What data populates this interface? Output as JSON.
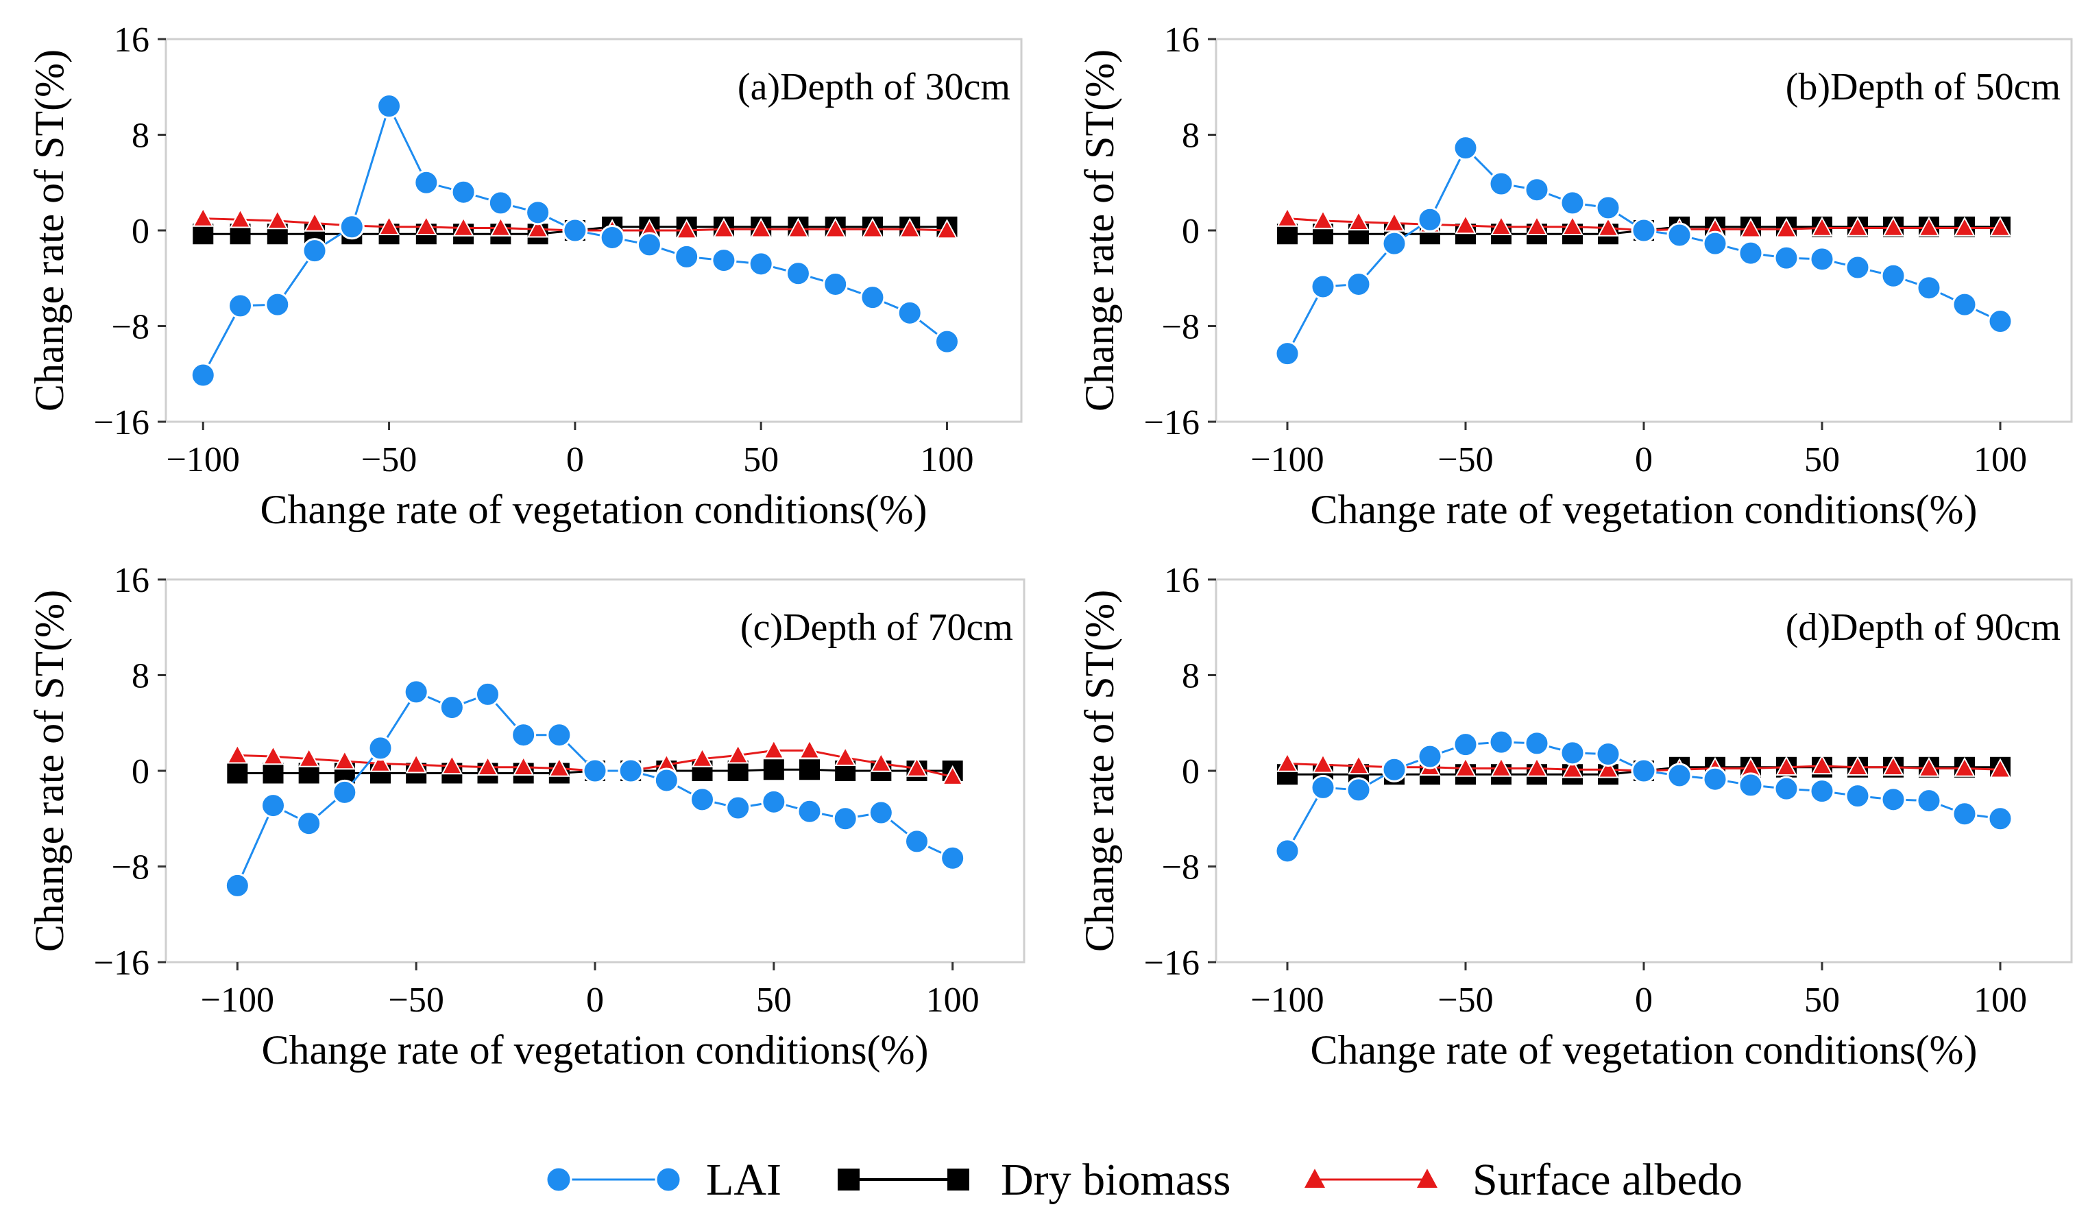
{
  "chart_data": {
    "type": "line",
    "legend": {
      "placement": "bottom",
      "entries": [
        {
          "name": "LAI",
          "marker": "circle",
          "color": "#1e8cf0"
        },
        {
          "name": "Dry biomass",
          "marker": "square",
          "color": "#000000"
        },
        {
          "name": "Surface albedo",
          "marker": "triangle",
          "color": "#e51a1a"
        }
      ]
    },
    "colors": {
      "lai": "#1e8cf0",
      "lai_stroke": "#ffffff",
      "dry": "#000000",
      "albedo": "#e51a1a",
      "frame": "#cfcfcf"
    },
    "panels": [
      {
        "title": "(a)Depth of 30cm",
        "xlabel": "Change rate of vegetation conditions(%)",
        "ylabel": "Change rate of ST(%)",
        "xlim": [
          -110,
          120
        ],
        "ylim": [
          -16,
          16
        ],
        "xticks": [
          -100,
          -50,
          0,
          50,
          100
        ],
        "xtick_labels": [
          "−100",
          "−50",
          "0",
          "50",
          "100"
        ],
        "yticks": [
          16,
          8,
          0,
          -8,
          -16
        ],
        "ytick_labels": [
          "16",
          "8",
          "0",
          "−8",
          "−16"
        ],
        "x": [
          -100,
          -90,
          -80,
          -70,
          -60,
          -50,
          -40,
          -30,
          -20,
          -10,
          0,
          10,
          20,
          30,
          40,
          50,
          60,
          70,
          80,
          90,
          100
        ],
        "series": [
          {
            "name": "LAI",
            "values": [
              -12.1,
              -6.3,
              -6.2,
              -1.7,
              0.3,
              10.4,
              4.0,
              3.2,
              2.3,
              1.5,
              0.0,
              -0.6,
              -1.2,
              -2.2,
              -2.5,
              -2.8,
              -3.6,
              -4.5,
              -5.6,
              -6.9,
              -9.3
            ]
          },
          {
            "name": "Dry biomass",
            "values": [
              -0.3,
              -0.3,
              -0.3,
              -0.3,
              -0.3,
              -0.3,
              -0.3,
              -0.3,
              -0.3,
              -0.3,
              0.0,
              0.3,
              0.3,
              0.3,
              0.3,
              0.3,
              0.3,
              0.3,
              0.3,
              0.3,
              0.3
            ]
          },
          {
            "name": "Surface albedo",
            "values": [
              1.0,
              0.9,
              0.8,
              0.6,
              0.4,
              0.3,
              0.3,
              0.2,
              0.2,
              0.1,
              0.0,
              0.0,
              0.0,
              0.0,
              0.1,
              0.1,
              0.1,
              0.1,
              0.1,
              0.1,
              0.0
            ]
          }
        ]
      },
      {
        "title": "(b)Depth of 50cm",
        "xlabel": "Change rate of vegetation conditions(%)",
        "ylabel": "Change rate of ST(%)",
        "xlim": [
          -120,
          120
        ],
        "ylim": [
          -16,
          16
        ],
        "xticks": [
          -100,
          -50,
          0,
          50,
          100
        ],
        "xtick_labels": [
          "−100",
          "−50",
          "0",
          "50",
          "100"
        ],
        "yticks": [
          16,
          8,
          0,
          -8,
          -16
        ],
        "ytick_labels": [
          "16",
          "8",
          "0",
          "−8",
          "−16"
        ],
        "x": [
          -100,
          -90,
          -80,
          -70,
          -60,
          -50,
          -40,
          -30,
          -20,
          -10,
          0,
          10,
          20,
          30,
          40,
          50,
          60,
          70,
          80,
          90,
          100
        ],
        "series": [
          {
            "name": "LAI",
            "values": [
              -10.3,
              -4.7,
              -4.5,
              -1.1,
              0.9,
              6.9,
              3.9,
              3.4,
              2.3,
              1.9,
              0.0,
              -0.4,
              -1.1,
              -1.9,
              -2.3,
              -2.4,
              -3.1,
              -3.8,
              -4.8,
              -6.2,
              -7.6
            ]
          },
          {
            "name": "Dry biomass",
            "values": [
              -0.3,
              -0.3,
              -0.3,
              -0.3,
              -0.3,
              -0.3,
              -0.3,
              -0.3,
              -0.3,
              -0.3,
              0.0,
              0.3,
              0.3,
              0.3,
              0.3,
              0.3,
              0.3,
              0.3,
              0.3,
              0.3,
              0.3
            ]
          },
          {
            "name": "Surface albedo",
            "values": [
              1.0,
              0.8,
              0.7,
              0.6,
              0.5,
              0.4,
              0.3,
              0.3,
              0.3,
              0.2,
              0.0,
              0.1,
              0.1,
              0.1,
              0.1,
              0.2,
              0.2,
              0.2,
              0.2,
              0.2,
              0.2
            ]
          }
        ]
      },
      {
        "title": "(c)Depth of 70cm",
        "xlabel": "Change rate of vegetation conditions(%)",
        "ylabel": "Change rate of ST(%)",
        "xlim": [
          -120,
          120
        ],
        "ylim": [
          -16,
          16
        ],
        "xticks": [
          -100,
          -50,
          0,
          50,
          100
        ],
        "xtick_labels": [
          "−100",
          "−50",
          "0",
          "50",
          "100"
        ],
        "yticks": [
          16,
          8,
          0,
          -8,
          -16
        ],
        "ytick_labels": [
          "16",
          "8",
          "0",
          "−8",
          "−16"
        ],
        "x": [
          -100,
          -90,
          -80,
          -70,
          -60,
          -50,
          -40,
          -30,
          -20,
          -10,
          0,
          10,
          20,
          30,
          40,
          50,
          60,
          70,
          80,
          90,
          100
        ],
        "series": [
          {
            "name": "LAI",
            "values": [
              -9.6,
              -2.9,
              -4.4,
              -1.8,
              1.9,
              6.6,
              5.3,
              6.4,
              3.0,
              3.0,
              0.0,
              0.0,
              -0.8,
              -2.4,
              -3.1,
              -2.6,
              -3.4,
              -4.0,
              -3.5,
              -5.9,
              -7.3
            ]
          },
          {
            "name": "Dry biomass",
            "values": [
              -0.2,
              -0.2,
              -0.2,
              -0.2,
              -0.2,
              -0.2,
              -0.2,
              -0.2,
              -0.2,
              -0.2,
              0.0,
              0.0,
              0.0,
              0.0,
              0.0,
              0.1,
              0.1,
              0.0,
              0.0,
              0.0,
              0.0
            ]
          },
          {
            "name": "Surface albedo",
            "values": [
              1.3,
              1.2,
              1.0,
              0.8,
              0.6,
              0.5,
              0.4,
              0.3,
              0.3,
              0.2,
              0.0,
              0.0,
              0.5,
              1.0,
              1.3,
              1.7,
              1.7,
              1.1,
              0.6,
              0.2,
              -0.5
            ]
          }
        ]
      },
      {
        "title": "(d)Depth of 90cm",
        "xlabel": "Change rate of vegetation conditions(%)",
        "ylabel": "Change rate of ST(%)",
        "xlim": [
          -120,
          120
        ],
        "ylim": [
          -16,
          16
        ],
        "xticks": [
          -100,
          -50,
          0,
          50,
          100
        ],
        "xtick_labels": [
          "−100",
          "−50",
          "0",
          "50",
          "100"
        ],
        "yticks": [
          16,
          8,
          0,
          -8,
          -16
        ],
        "ytick_labels": [
          "16",
          "8",
          "0",
          "−8",
          "−16"
        ],
        "x": [
          -100,
          -90,
          -80,
          -70,
          -60,
          -50,
          -40,
          -30,
          -20,
          -10,
          0,
          10,
          20,
          30,
          40,
          50,
          60,
          70,
          80,
          90,
          100
        ],
        "series": [
          {
            "name": "LAI",
            "values": [
              -6.7,
              -1.4,
              -1.6,
              0.1,
              1.2,
              2.2,
              2.4,
              2.3,
              1.5,
              1.4,
              0.0,
              -0.4,
              -0.7,
              -1.2,
              -1.5,
              -1.7,
              -2.1,
              -2.4,
              -2.5,
              -3.6,
              -4.0
            ]
          },
          {
            "name": "Dry biomass",
            "values": [
              -0.3,
              -0.3,
              -0.3,
              -0.3,
              -0.3,
              -0.3,
              -0.3,
              -0.3,
              -0.3,
              -0.3,
              0.0,
              0.3,
              0.3,
              0.3,
              0.3,
              0.3,
              0.3,
              0.3,
              0.3,
              0.3,
              0.3
            ]
          },
          {
            "name": "Surface albedo",
            "values": [
              0.6,
              0.5,
              0.4,
              0.3,
              0.3,
              0.2,
              0.2,
              0.2,
              0.1,
              0.1,
              0.0,
              0.1,
              0.2,
              0.2,
              0.3,
              0.4,
              0.3,
              0.3,
              0.2,
              0.2,
              0.1
            ]
          }
        ]
      }
    ]
  }
}
